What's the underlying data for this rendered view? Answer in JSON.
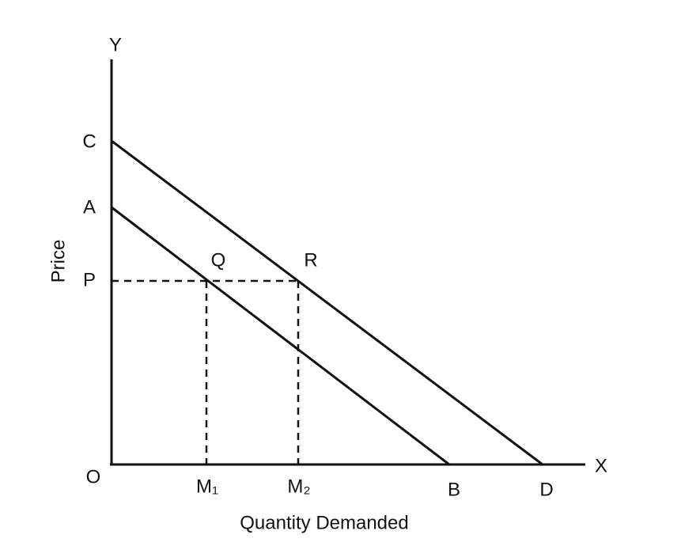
{
  "axes": {
    "x_label": "Quantity Demanded",
    "y_label": "Price",
    "x_end": "X",
    "y_end": "Y",
    "origin": "O"
  },
  "points": {
    "C": "C",
    "A": "A",
    "P": "P",
    "Q": "Q",
    "R": "R",
    "M1": "M₁",
    "M2": "M₂",
    "B": "B",
    "D": "D"
  }
}
